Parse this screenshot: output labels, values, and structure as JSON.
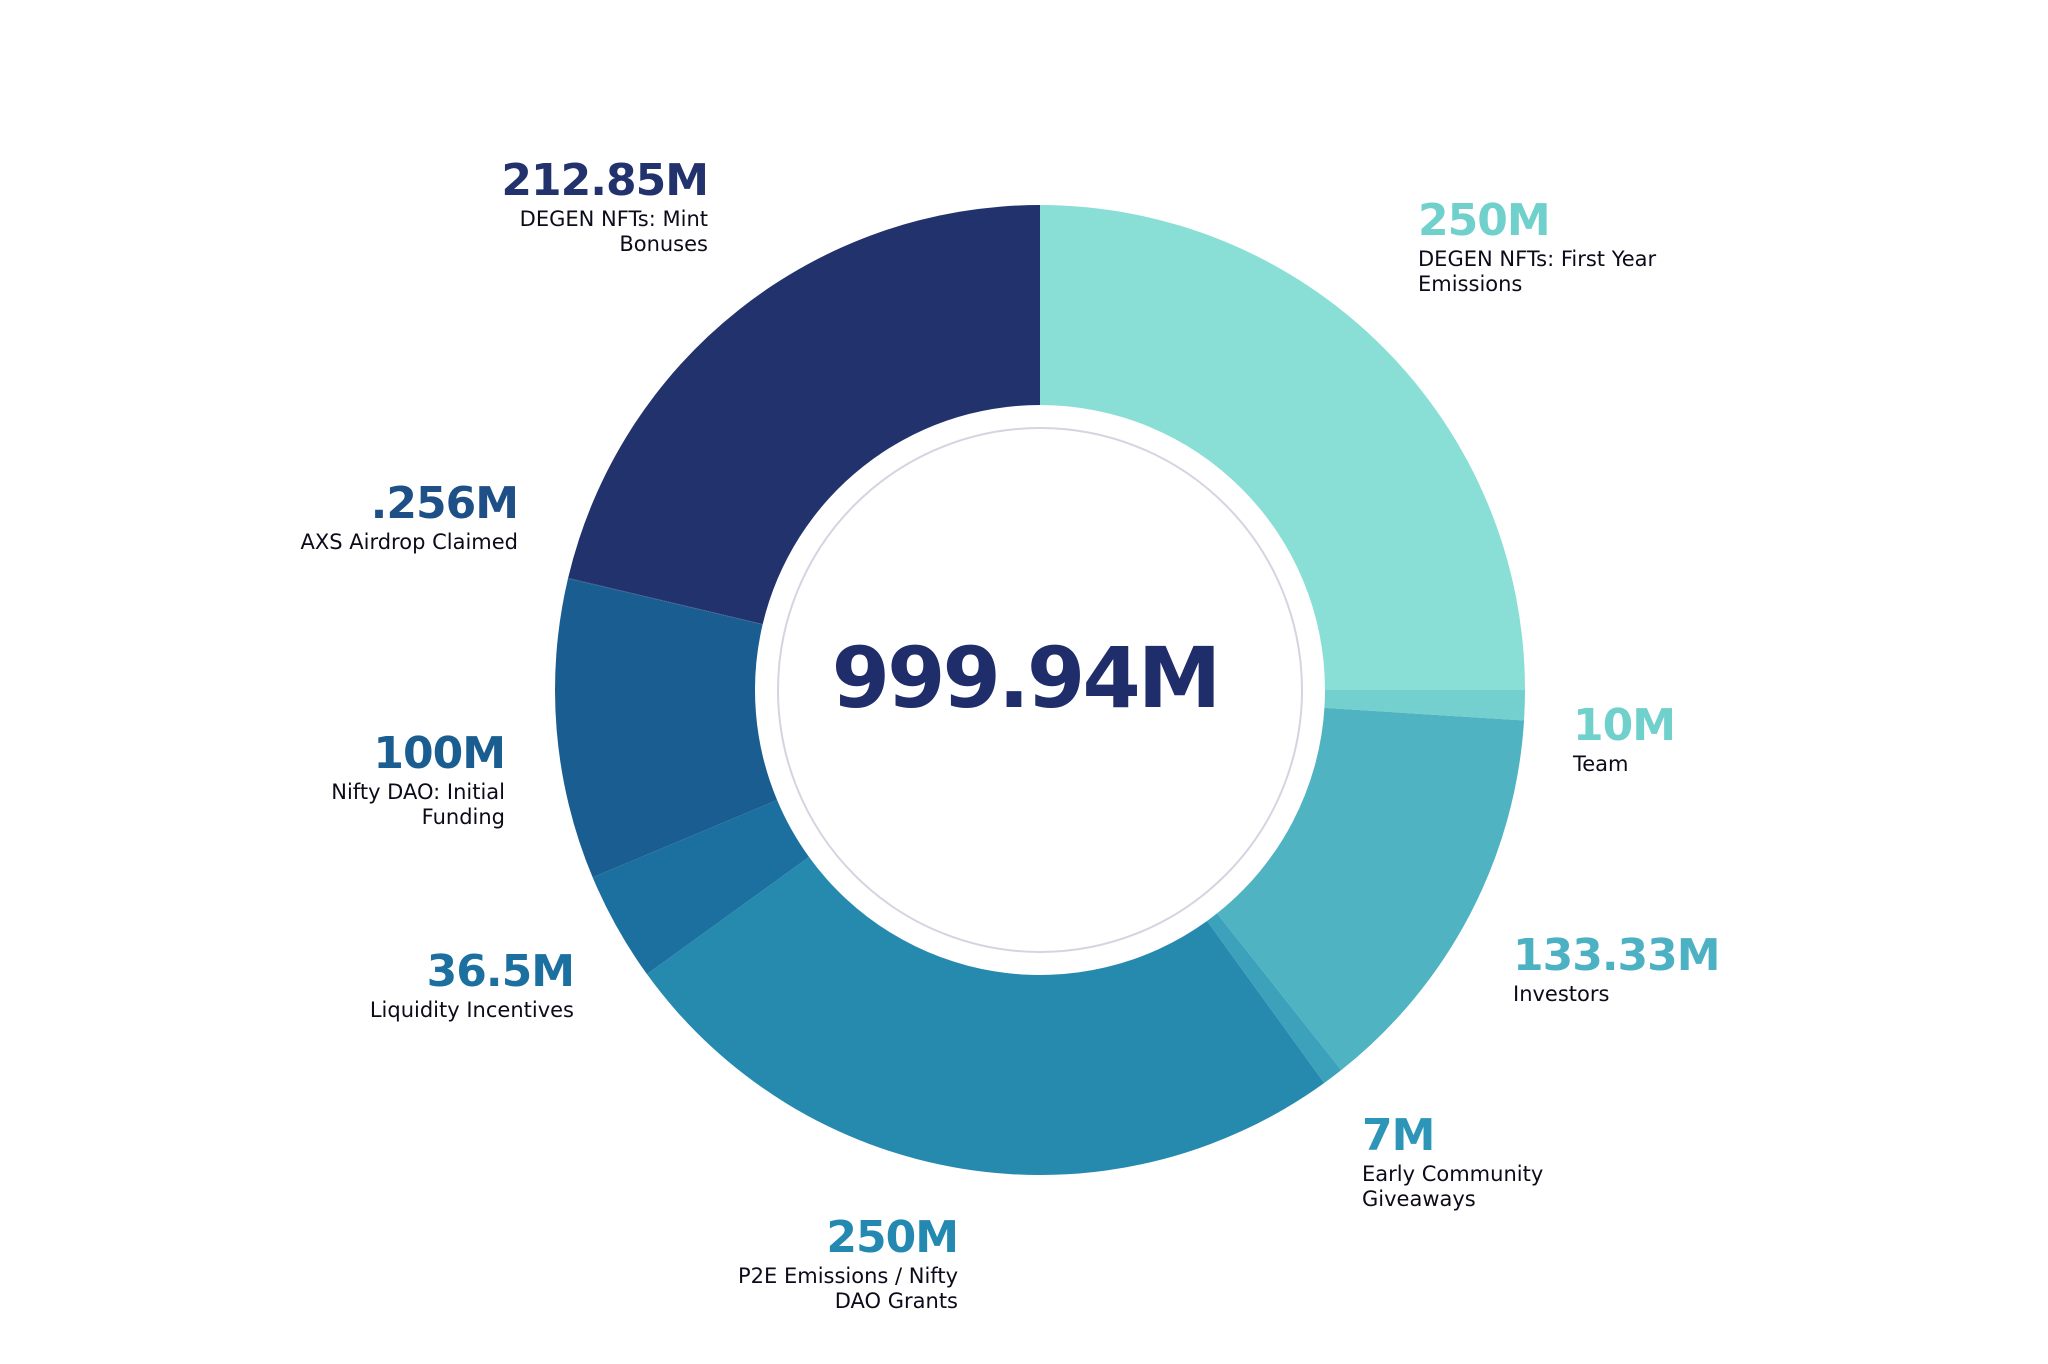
{
  "chart_data": {
    "type": "pie",
    "variant": "donut",
    "total_label": "999.94M",
    "slices": [
      {
        "value_label": "250M",
        "value": 250,
        "name_lines": [
          "DEGEN NFTs: First Year",
          "Emissions"
        ],
        "color": "#89dfd5"
      },
      {
        "value_label": "10M",
        "value": 10,
        "name_lines": [
          "Team"
        ],
        "color": "#73d0cf"
      },
      {
        "value_label": "133.33M",
        "value": 133.33,
        "name_lines": [
          "Investors"
        ],
        "color": "#50b3c2"
      },
      {
        "value_label": "7M",
        "value": 7,
        "name_lines": [
          "Early Community",
          "Giveaways"
        ],
        "color": "#3ca2bb"
      },
      {
        "value_label": "250M",
        "value": 250,
        "name_lines": [
          "P2E Emissions / Nifty",
          "DAO Grants"
        ],
        "color": "#268aaf"
      },
      {
        "value_label": "36.5M",
        "value": 36.5,
        "name_lines": [
          "Liquidity Incentives"
        ],
        "color": "#1c70a0"
      },
      {
        "value_label": "100M",
        "value": 100,
        "name_lines": [
          "Nifty DAO: Initial",
          "Funding"
        ],
        "color": "#1a5e91"
      },
      {
        "value_label": ".256M",
        "value": 0.256,
        "name_lines": [
          "AXS Airdrop Claimed"
        ],
        "color": "#1e4f87"
      },
      {
        "value_label": "212.85M",
        "value": 212.85,
        "name_lines": [
          "DEGEN NFTs: Mint",
          "Bonuses"
        ],
        "color": "#22326d"
      }
    ],
    "label_colors": {
      "250M-first": "#6fd0cc",
      "10M": "#6fd0cc",
      "133.33M": "#4db1c4",
      "7M": "#2d96b8",
      "250M-p2e": "#2489b0",
      ".256M": "#1e4f87",
      "100M": "#1a5e91",
      "36.5M": "#1c70a0",
      "212.85M": "#22326d",
      "total": "#1f2d6b"
    }
  }
}
